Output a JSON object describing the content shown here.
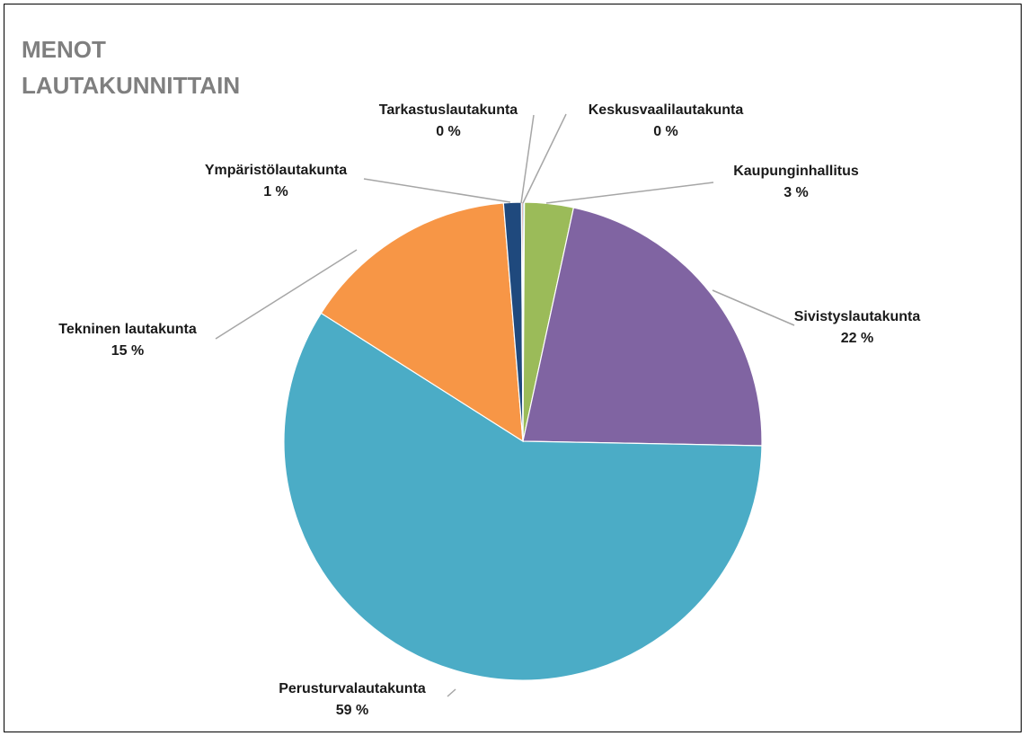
{
  "chart_data": {
    "type": "pie",
    "title_lines": [
      "MENOT",
      "LAUTAKUNNITTAIN"
    ],
    "categories": [
      "Keskusvaalilautakunta",
      "Kaupunginhallitus",
      "Sivistyslautakunta",
      "Perusturvalautakunta",
      "Tekninen lautakunta",
      "Ympäristölautakunta",
      "Tarkastuslautakunta"
    ],
    "values": [
      0.1,
      3.3,
      21.9,
      58.7,
      14.7,
      1.2,
      0.1
    ],
    "labels": [
      "0 %",
      "3 %",
      "22 %",
      "59 %",
      "15 %",
      "1 %",
      "0 %"
    ],
    "colors": [
      "#4bacc6",
      "#9bbb59",
      "#8064a2",
      "#4bacc6",
      "#f79646",
      "#1f497d",
      "#c0504d"
    ],
    "legend": "none",
    "data_labels": "outside with leader lines"
  }
}
